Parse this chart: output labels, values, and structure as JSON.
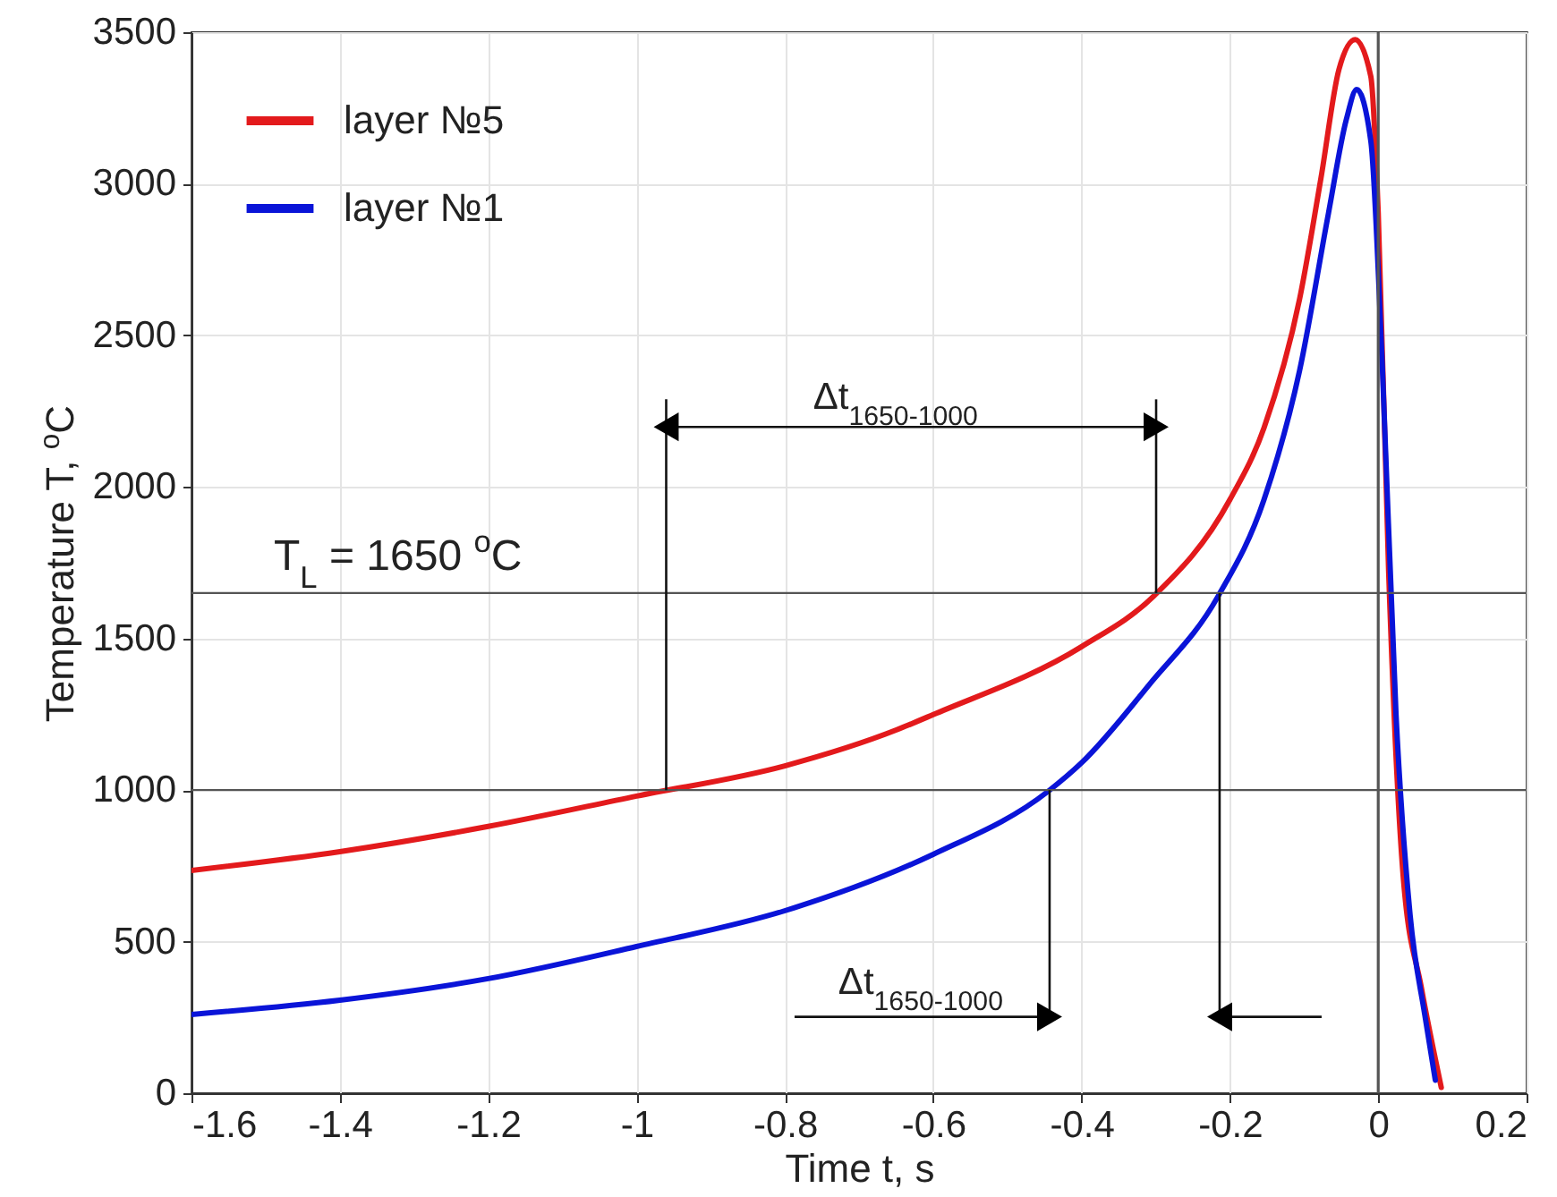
{
  "chart_data": {
    "type": "line",
    "xlabel": "Time t, s",
    "ylabel": "Temperature T, $^{o}$C",
    "xlim": [
      -1.6,
      0.2
    ],
    "xticks": [
      -1.6,
      -1.4,
      -1.2,
      {
        "value": -1,
        "label": "-1"
      },
      -0.8,
      -0.6,
      -0.4,
      -0.2,
      {
        "value": 0,
        "label": "0"
      },
      0.2
    ],
    "ylim": [
      0,
      3500
    ],
    "yticks": [
      0,
      500,
      1000,
      1500,
      2000,
      2500,
      3000,
      3500
    ],
    "grid": true,
    "legend": "top left",
    "line_style": "solid",
    "series": [
      {
        "name": "layer №5",
        "color": "#e31a1c",
        "x": [
          -1.6,
          -1.4,
          -1.2,
          -1.0,
          -0.8,
          -0.65,
          -0.6,
          -0.4,
          -0.303,
          -0.2,
          -0.154,
          -0.106,
          -0.077,
          -0.053,
          -0.031,
          -0.01,
          0,
          0.014,
          0.034,
          0.058,
          0.085
        ],
        "values": [
          735,
          797,
          880,
          980,
          1080,
          1198,
          1249,
          1473,
          1639,
          1958,
          2195,
          2620,
          3022,
          3377,
          3476,
          3354,
          2904,
          1722,
          705,
          350,
          19
        ]
      },
      {
        "name": "layer №1",
        "color": "#0a14d8",
        "x": [
          -1.6,
          -1.4,
          -1.2,
          -1.0,
          -0.8,
          -0.6,
          -0.445,
          -0.4,
          -0.308,
          -0.216,
          -0.154,
          -0.106,
          -0.067,
          -0.043,
          -0.029,
          -0.01,
          0.005,
          0.024,
          0.043,
          0.063,
          0.077
        ],
        "values": [
          260,
          307,
          378,
          484,
          602,
          788,
          996,
          1090,
          1350,
          1639,
          1958,
          2384,
          2904,
          3212,
          3311,
          3141,
          2431,
          1249,
          587,
          255,
          43
        ]
      }
    ],
    "ref_lines": [
      {
        "axis": "y",
        "value": 1650,
        "label": "T$_{L}$ = 1650 $^{o}$C"
      },
      {
        "axis": "y",
        "value": 1000,
        "label": null
      },
      {
        "axis": "x",
        "value": 0,
        "label": null
      }
    ],
    "annotations": [
      "Δt$_{1650-1000}$",
      "Δt$_{1650-1000}$"
    ]
  }
}
